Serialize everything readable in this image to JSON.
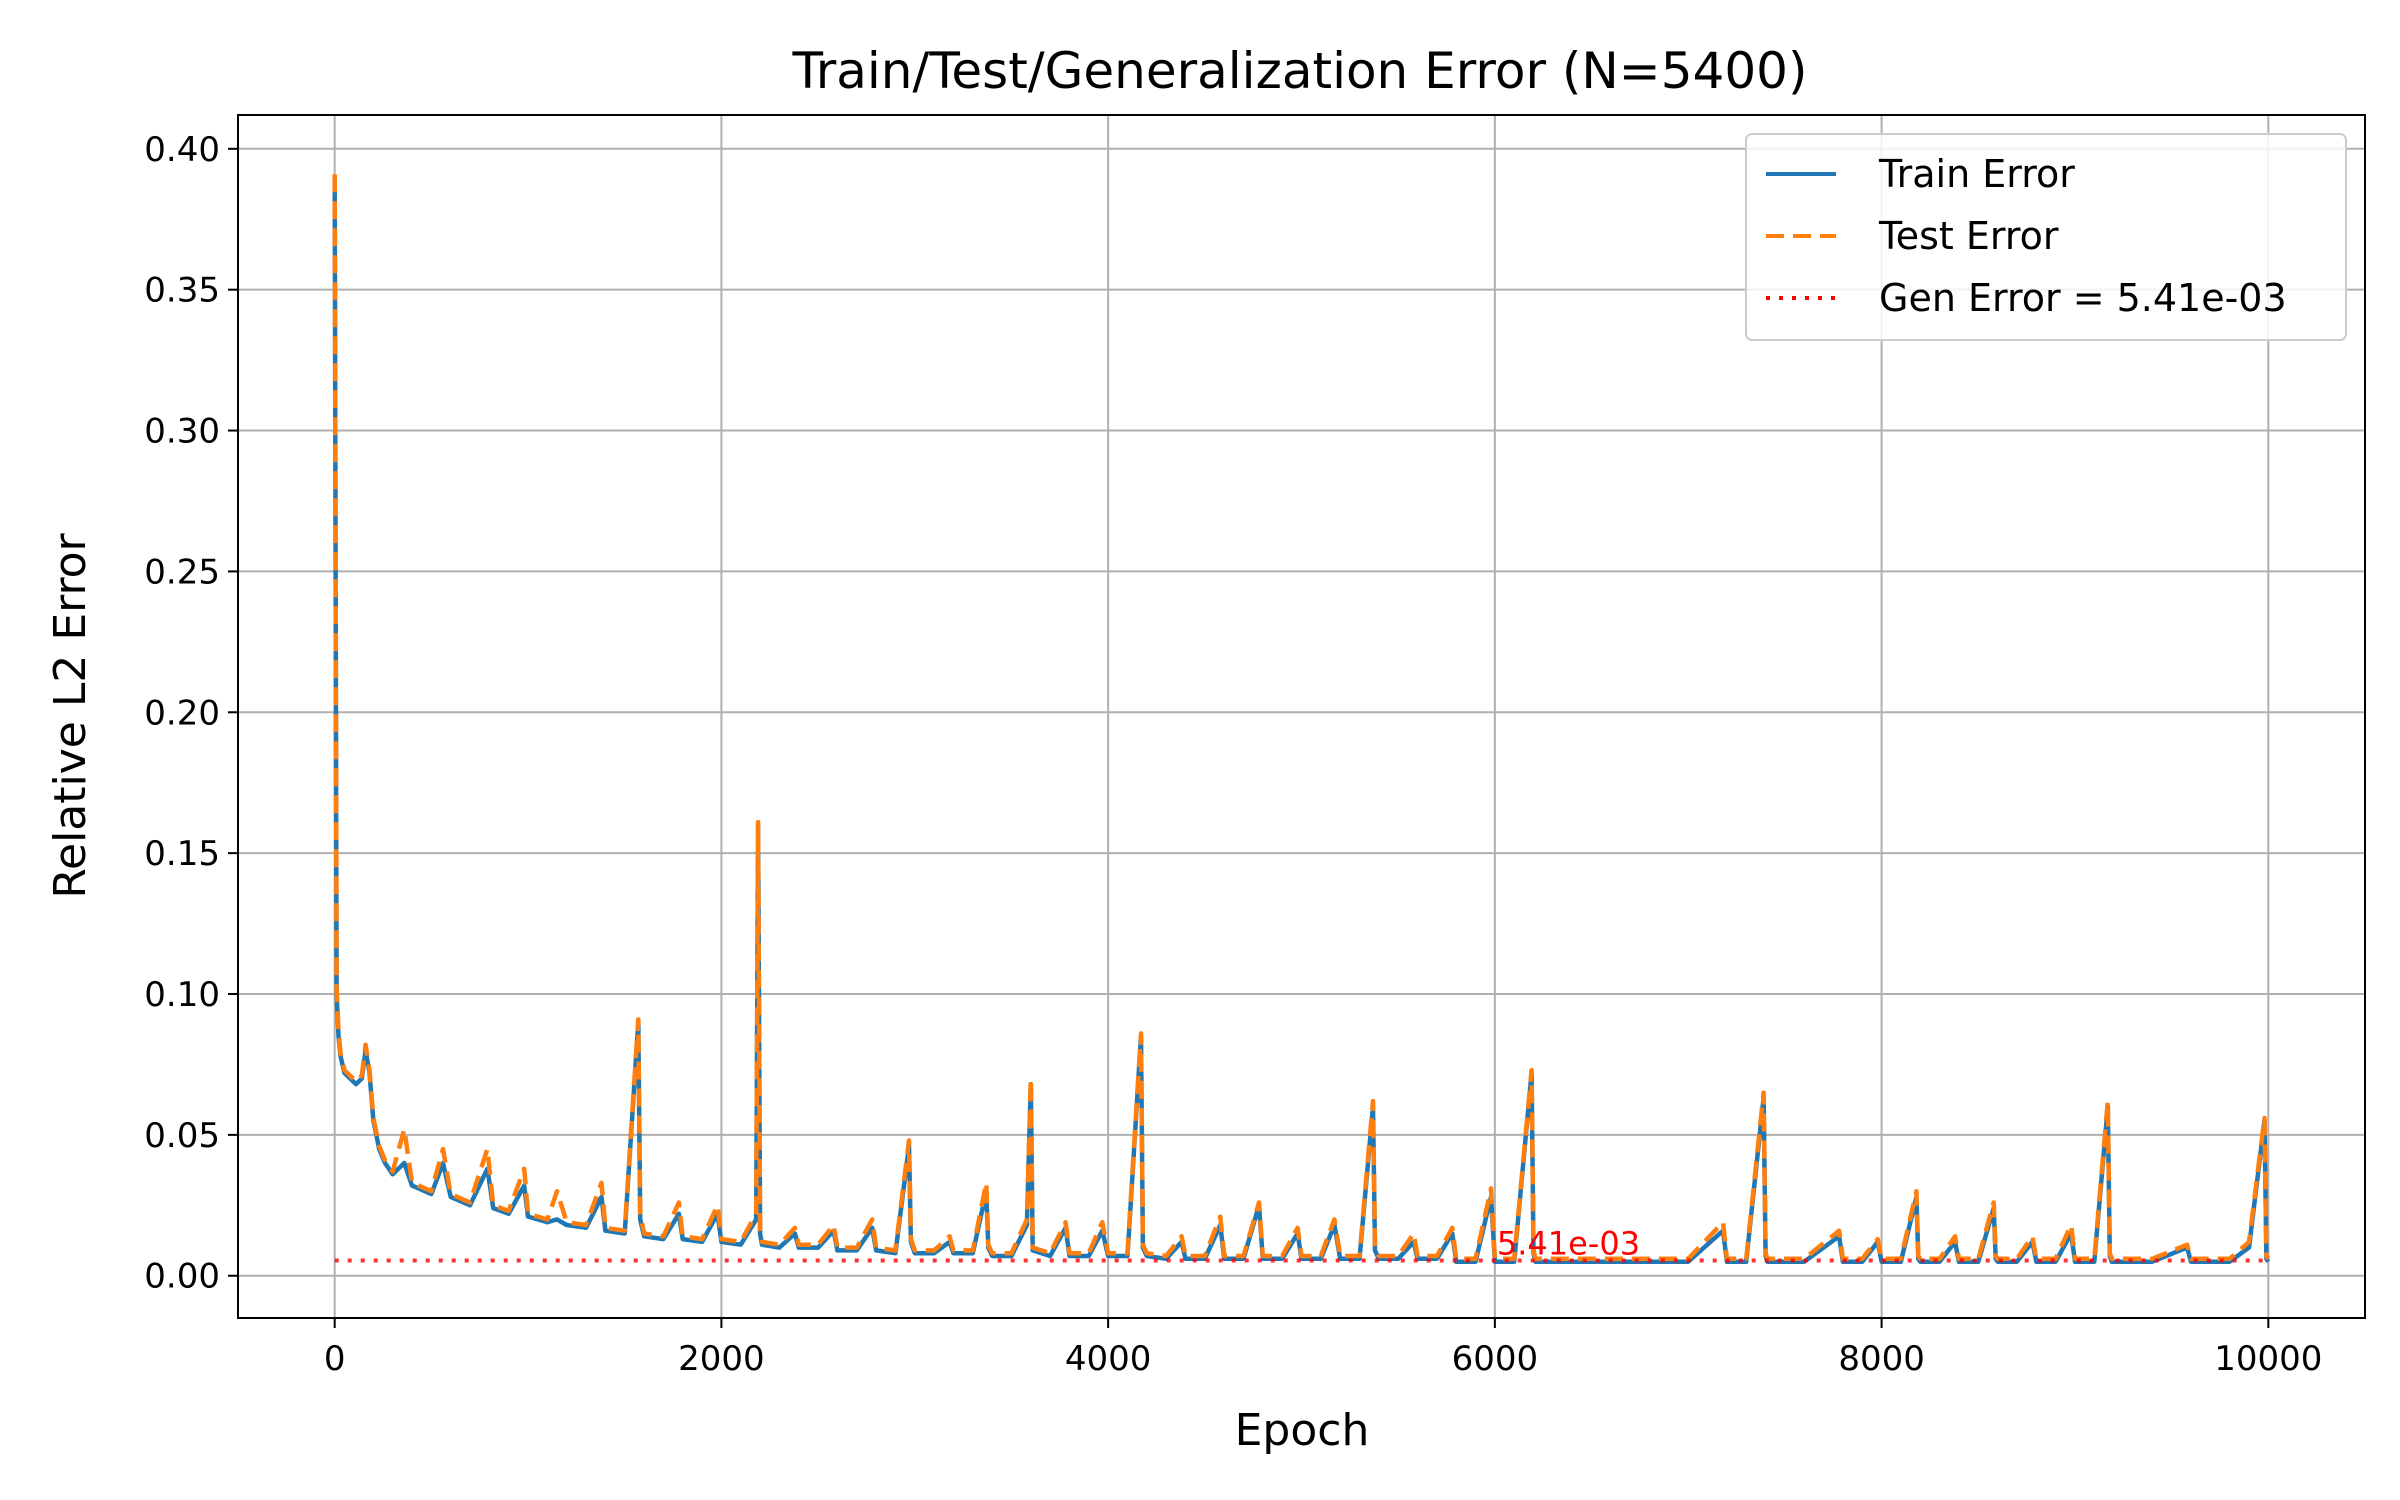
{
  "chart_data": {
    "type": "line",
    "title": "Train/Test/Generalization Error (N=5400)",
    "xlabel": "Epoch",
    "ylabel": "Relative L2 Error",
    "xlim": [
      -500,
      10500
    ],
    "ylim": [
      -0.015,
      0.412
    ],
    "xticks": [
      0,
      2000,
      4000,
      6000,
      8000,
      10000
    ],
    "xtick_labels": [
      "0",
      "2000",
      "4000",
      "6000",
      "8000",
      "10000"
    ],
    "yticks": [
      0.0,
      0.05,
      0.1,
      0.15,
      0.2,
      0.25,
      0.3,
      0.35,
      0.4
    ],
    "ytick_labels": [
      "0.00",
      "0.05",
      "0.10",
      "0.15",
      "0.20",
      "0.25",
      "0.30",
      "0.35",
      "0.40"
    ],
    "grid": true,
    "legend_position": "top-right",
    "series": [
      {
        "name": "Train Error",
        "color": "#1f77b4",
        "style": "solid",
        "x": [
          0,
          10,
          20,
          30,
          50,
          80,
          110,
          140,
          160,
          180,
          200,
          230,
          260,
          300,
          360,
          400,
          500,
          560,
          600,
          700,
          790,
          820,
          900,
          980,
          1000,
          1050,
          1100,
          1150,
          1200,
          1300,
          1380,
          1400,
          1500,
          1570,
          1580,
          1600,
          1700,
          1780,
          1800,
          1900,
          1980,
          2000,
          2100,
          2180,
          2190,
          2200,
          2210,
          2300,
          2380,
          2400,
          2500,
          2580,
          2600,
          2700,
          2780,
          2800,
          2900,
          2970,
          2980,
          3000,
          3100,
          3180,
          3200,
          3300,
          3370,
          3380,
          3400,
          3500,
          3580,
          3600,
          3610,
          3700,
          3780,
          3800,
          3900,
          3970,
          4000,
          4100,
          4170,
          4180,
          4200,
          4300,
          4380,
          4400,
          4500,
          4580,
          4600,
          4700,
          4780,
          4800,
          4900,
          4980,
          5000,
          5100,
          5170,
          5200,
          5300,
          5370,
          5380,
          5400,
          5500,
          5580,
          5600,
          5700,
          5780,
          5800,
          5900,
          5980,
          6000,
          6100,
          6190,
          6200,
          6210,
          6300,
          6400,
          6600,
          6800,
          7000,
          7180,
          7200,
          7300,
          7390,
          7400,
          7410,
          7500,
          7600,
          7780,
          7800,
          7900,
          7980,
          8000,
          8100,
          8180,
          8190,
          8200,
          8300,
          8380,
          8400,
          8500,
          8580,
          8590,
          8600,
          8700,
          8780,
          8800,
          8900,
          8980,
          9000,
          9100,
          9170,
          9180,
          9190,
          9300,
          9400,
          9580,
          9600,
          9700,
          9800,
          9900,
          9980,
          9990,
          10000
        ],
        "y": [
          0.39,
          0.1,
          0.085,
          0.078,
          0.072,
          0.07,
          0.068,
          0.07,
          0.08,
          0.072,
          0.055,
          0.045,
          0.04,
          0.036,
          0.04,
          0.032,
          0.029,
          0.04,
          0.028,
          0.025,
          0.038,
          0.024,
          0.022,
          0.032,
          0.021,
          0.02,
          0.019,
          0.02,
          0.018,
          0.017,
          0.028,
          0.016,
          0.015,
          0.09,
          0.02,
          0.014,
          0.013,
          0.022,
          0.013,
          0.012,
          0.022,
          0.012,
          0.011,
          0.02,
          0.16,
          0.015,
          0.011,
          0.01,
          0.015,
          0.01,
          0.01,
          0.016,
          0.009,
          0.009,
          0.017,
          0.009,
          0.008,
          0.046,
          0.012,
          0.008,
          0.008,
          0.012,
          0.008,
          0.008,
          0.03,
          0.01,
          0.007,
          0.007,
          0.018,
          0.068,
          0.009,
          0.007,
          0.017,
          0.007,
          0.007,
          0.016,
          0.007,
          0.007,
          0.085,
          0.01,
          0.007,
          0.006,
          0.012,
          0.006,
          0.006,
          0.018,
          0.006,
          0.006,
          0.025,
          0.006,
          0.006,
          0.015,
          0.006,
          0.006,
          0.018,
          0.006,
          0.006,
          0.06,
          0.009,
          0.006,
          0.006,
          0.012,
          0.006,
          0.006,
          0.015,
          0.005,
          0.005,
          0.028,
          0.005,
          0.005,
          0.072,
          0.008,
          0.005,
          0.005,
          0.005,
          0.005,
          0.005,
          0.005,
          0.016,
          0.005,
          0.005,
          0.063,
          0.007,
          0.005,
          0.005,
          0.005,
          0.014,
          0.005,
          0.005,
          0.012,
          0.005,
          0.005,
          0.028,
          0.006,
          0.005,
          0.005,
          0.012,
          0.005,
          0.005,
          0.024,
          0.006,
          0.005,
          0.005,
          0.012,
          0.005,
          0.005,
          0.015,
          0.005,
          0.005,
          0.06,
          0.007,
          0.005,
          0.005,
          0.005,
          0.01,
          0.005,
          0.005,
          0.005,
          0.01,
          0.055,
          0.006,
          0.005
        ]
      },
      {
        "name": "Test Error",
        "color": "#ff7f0e",
        "style": "dashed",
        "x": [
          0,
          10,
          20,
          30,
          50,
          80,
          110,
          140,
          160,
          180,
          200,
          230,
          260,
          300,
          360,
          400,
          500,
          560,
          600,
          700,
          790,
          820,
          900,
          980,
          1000,
          1050,
          1100,
          1150,
          1200,
          1300,
          1380,
          1400,
          1500,
          1570,
          1580,
          1600,
          1700,
          1780,
          1800,
          1900,
          1980,
          2000,
          2100,
          2180,
          2190,
          2200,
          2210,
          2300,
          2380,
          2400,
          2500,
          2580,
          2600,
          2700,
          2780,
          2800,
          2900,
          2970,
          2980,
          3000,
          3100,
          3180,
          3200,
          3300,
          3370,
          3380,
          3400,
          3500,
          3580,
          3600,
          3610,
          3700,
          3780,
          3800,
          3900,
          3970,
          4000,
          4100,
          4170,
          4180,
          4200,
          4300,
          4380,
          4400,
          4500,
          4580,
          4600,
          4700,
          4780,
          4800,
          4900,
          4980,
          5000,
          5100,
          5170,
          5200,
          5300,
          5370,
          5380,
          5400,
          5500,
          5580,
          5600,
          5700,
          5780,
          5800,
          5900,
          5980,
          6000,
          6100,
          6190,
          6200,
          6210,
          6300,
          6400,
          6600,
          6800,
          7000,
          7180,
          7200,
          7300,
          7390,
          7400,
          7410,
          7500,
          7600,
          7780,
          7800,
          7900,
          7980,
          8000,
          8100,
          8180,
          8190,
          8200,
          8300,
          8380,
          8400,
          8500,
          8580,
          8590,
          8600,
          8700,
          8780,
          8800,
          8900,
          8980,
          9000,
          9100,
          9170,
          9180,
          9190,
          9300,
          9400,
          9580,
          9600,
          9700,
          9800,
          9900,
          9980,
          9990,
          10000
        ],
        "y": [
          0.391,
          0.102,
          0.087,
          0.079,
          0.073,
          0.071,
          0.069,
          0.071,
          0.082,
          0.073,
          0.056,
          0.046,
          0.041,
          0.037,
          0.052,
          0.033,
          0.03,
          0.045,
          0.029,
          0.026,
          0.045,
          0.025,
          0.023,
          0.038,
          0.022,
          0.021,
          0.02,
          0.03,
          0.019,
          0.018,
          0.033,
          0.017,
          0.016,
          0.091,
          0.022,
          0.015,
          0.014,
          0.026,
          0.014,
          0.013,
          0.025,
          0.013,
          0.012,
          0.022,
          0.161,
          0.016,
          0.012,
          0.011,
          0.017,
          0.011,
          0.011,
          0.018,
          0.01,
          0.01,
          0.02,
          0.01,
          0.009,
          0.048,
          0.013,
          0.009,
          0.009,
          0.014,
          0.009,
          0.009,
          0.033,
          0.011,
          0.008,
          0.008,
          0.02,
          0.07,
          0.01,
          0.008,
          0.019,
          0.008,
          0.008,
          0.019,
          0.008,
          0.008,
          0.086,
          0.011,
          0.008,
          0.007,
          0.014,
          0.007,
          0.007,
          0.021,
          0.007,
          0.007,
          0.026,
          0.007,
          0.007,
          0.017,
          0.007,
          0.007,
          0.02,
          0.007,
          0.007,
          0.062,
          0.01,
          0.007,
          0.007,
          0.015,
          0.007,
          0.007,
          0.017,
          0.006,
          0.006,
          0.031,
          0.006,
          0.006,
          0.073,
          0.009,
          0.006,
          0.006,
          0.006,
          0.006,
          0.006,
          0.006,
          0.019,
          0.006,
          0.006,
          0.065,
          0.008,
          0.006,
          0.006,
          0.006,
          0.016,
          0.006,
          0.006,
          0.013,
          0.006,
          0.006,
          0.03,
          0.007,
          0.006,
          0.006,
          0.014,
          0.006,
          0.006,
          0.026,
          0.007,
          0.006,
          0.006,
          0.014,
          0.006,
          0.006,
          0.018,
          0.006,
          0.006,
          0.062,
          0.008,
          0.006,
          0.006,
          0.006,
          0.011,
          0.006,
          0.006,
          0.006,
          0.012,
          0.056,
          0.007,
          0.006
        ]
      },
      {
        "name": "Gen Error = 5.41e-03",
        "color": "#ff0000",
        "style": "dotted",
        "x": [
          0,
          10000
        ],
        "y": [
          0.00541,
          0.00541
        ]
      }
    ],
    "annotations": [
      {
        "text": "5.41e-03",
        "x": 6000,
        "y": 0.00541,
        "color": "#ff0000"
      }
    ]
  }
}
